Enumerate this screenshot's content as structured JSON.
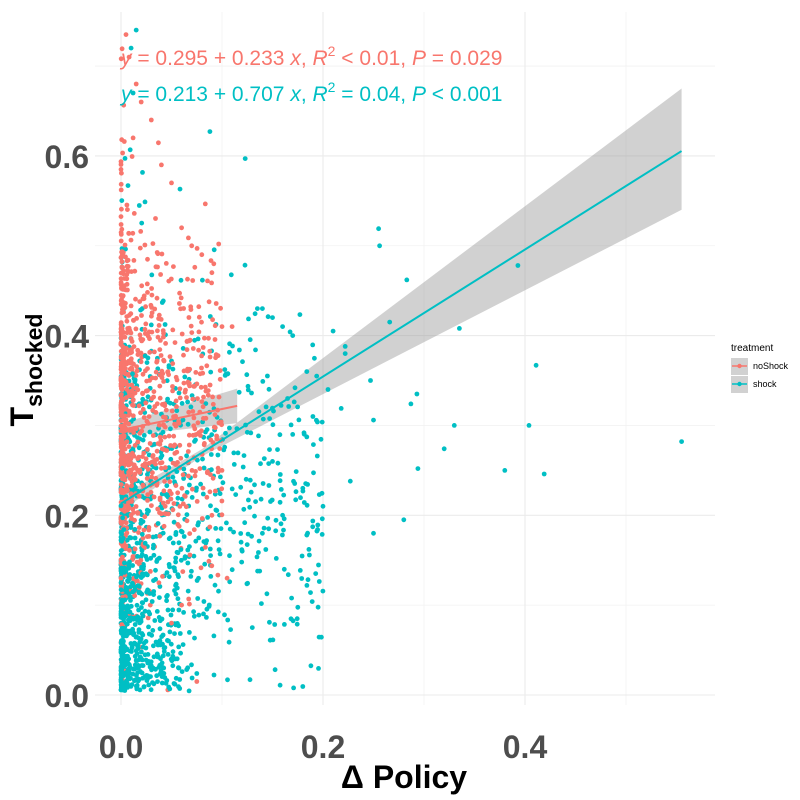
{
  "chart_data": {
    "type": "scatter",
    "xlabel": "Δ Policy",
    "ylabel_main": "T",
    "ylabel_sub": "shocked",
    "xlim": [
      -0.03,
      0.585
    ],
    "ylim": [
      -0.003,
      0.735
    ],
    "x_ticks": [
      0.0,
      0.2,
      0.4
    ],
    "x_tick_labels": [
      "0.0",
      "0.2",
      "0.4"
    ],
    "y_ticks": [
      0.0,
      0.2,
      0.4,
      0.6
    ],
    "y_tick_labels": [
      "0.0",
      "0.2",
      "0.4",
      "0.6"
    ],
    "grid": true,
    "legend": {
      "title": "treatment",
      "position": "right",
      "entries": [
        "noShock",
        "shock"
      ]
    },
    "series": [
      {
        "name": "noShock",
        "color": "#f8766d",
        "fit": {
          "intercept": 0.295,
          "slope": 0.233,
          "x_range": [
            0.0,
            0.115
          ],
          "ci_half_width": 0.012
        },
        "equation": {
          "parts": [
            "y",
            " = 0.295 + 0.233 ",
            "x",
            ", ",
            "R",
            "2",
            " < 0.01, ",
            "P",
            " = 0.029"
          ]
        },
        "bulk": {
          "x_max": 0.1,
          "y_center": 0.31,
          "y_spread": 0.12
        },
        "points": [
          [
            0.005,
            0.735
          ],
          [
            0.008,
            0.71
          ],
          [
            0.015,
            0.68
          ],
          [
            0.02,
            0.66
          ],
          [
            0.03,
            0.64
          ],
          [
            0.012,
            0.62
          ],
          [
            0.04,
            0.59
          ],
          [
            0.05,
            0.57
          ],
          [
            0.06,
            0.52
          ],
          [
            0.07,
            0.5
          ],
          [
            0.08,
            0.49
          ],
          [
            0.09,
            0.47
          ],
          [
            0.1,
            0.41
          ],
          [
            0.11,
            0.41
          ],
          [
            0.105,
            0.13
          ],
          [
            0.075,
            0.015
          ],
          [
            0.06,
            0.1
          ],
          [
            0.05,
            0.08
          ],
          [
            0.09,
            0.2
          ],
          [
            0.085,
            0.22
          ],
          [
            0.1,
            0.25
          ]
        ]
      },
      {
        "name": "shock",
        "color": "#00bfc4",
        "fit": {
          "intercept": 0.213,
          "slope": 0.707,
          "x_range": [
            0.0,
            0.555
          ],
          "ci_lower_end": 0.54,
          "ci_upper_end": 0.675
        },
        "equation": {
          "parts": [
            "y",
            " = 0.213 + 0.707 ",
            "x",
            ", ",
            "R",
            "2",
            " = 0.04, ",
            "P",
            " < 0.001"
          ]
        },
        "bulk": {
          "x_max": 0.2,
          "y_center": 0.22,
          "y_spread": 0.13
        },
        "points": [
          [
            0.015,
            0.74
          ],
          [
            0.01,
            0.72
          ],
          [
            0.012,
            0.67
          ],
          [
            0.088,
            0.627
          ],
          [
            0.123,
            0.597
          ],
          [
            0.255,
            0.519
          ],
          [
            0.256,
            0.5
          ],
          [
            0.393,
            0.478
          ],
          [
            0.283,
            0.462
          ],
          [
            0.266,
            0.415
          ],
          [
            0.335,
            0.408
          ],
          [
            0.21,
            0.405
          ],
          [
            0.222,
            0.388
          ],
          [
            0.222,
            0.38
          ],
          [
            0.411,
            0.367
          ],
          [
            0.247,
            0.35
          ],
          [
            0.293,
            0.335
          ],
          [
            0.287,
            0.324
          ],
          [
            0.218,
            0.319
          ],
          [
            0.25,
            0.306
          ],
          [
            0.404,
            0.3
          ],
          [
            0.555,
            0.282
          ],
          [
            0.32,
            0.274
          ],
          [
            0.294,
            0.252
          ],
          [
            0.419,
            0.246
          ],
          [
            0.227,
            0.238
          ],
          [
            0.28,
            0.195
          ],
          [
            0.25,
            0.18
          ],
          [
            0.186,
            0.162
          ],
          [
            0.13,
            0.075
          ],
          [
            0.38,
            0.25
          ],
          [
            0.33,
            0.3
          ],
          [
            0.205,
            0.34
          ],
          [
            0.19,
            0.31
          ],
          [
            0.17,
            0.29
          ],
          [
            0.15,
            0.26
          ],
          [
            0.2,
            0.21
          ],
          [
            0.18,
            0.23
          ],
          [
            0.16,
            0.2
          ],
          [
            0.14,
            0.18
          ],
          [
            0.12,
            0.16
          ],
          [
            0.135,
            0.43
          ],
          [
            0.14,
            0.43
          ],
          [
            0.15,
            0.42
          ],
          [
            0.16,
            0.41
          ],
          [
            0.17,
            0.4
          ],
          [
            0.145,
            0.355
          ],
          [
            0.165,
            0.33
          ]
        ]
      }
    ]
  }
}
